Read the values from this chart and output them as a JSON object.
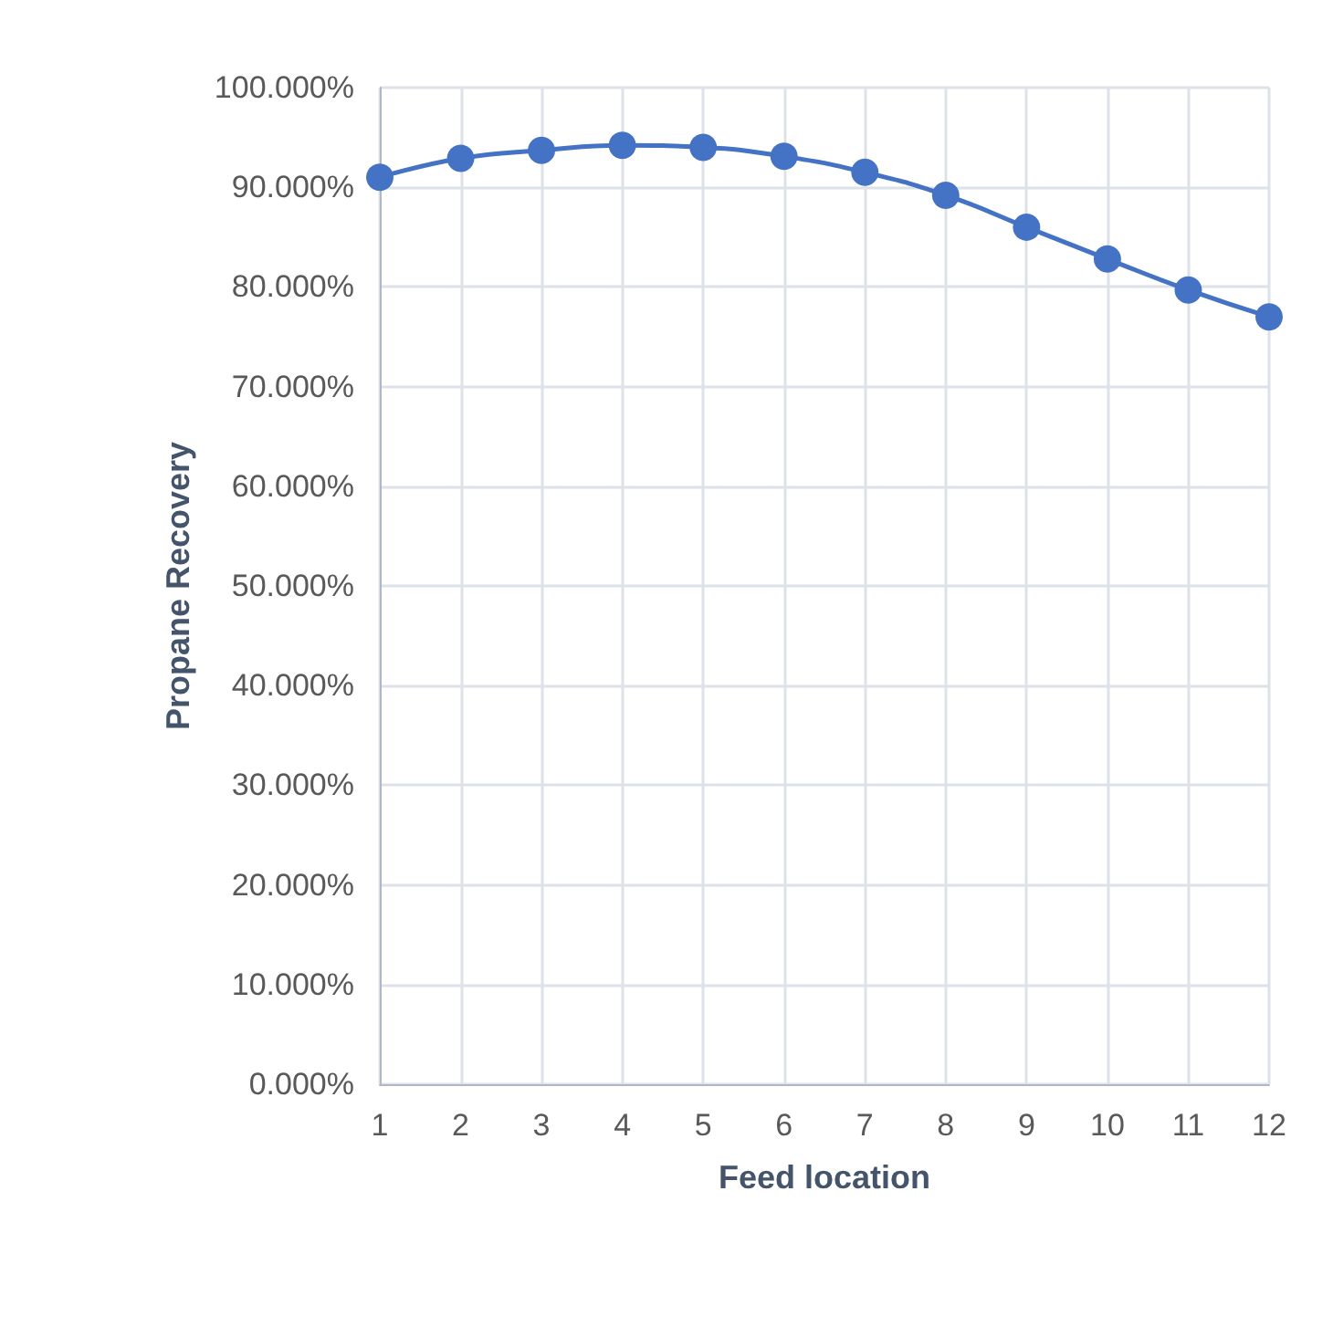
{
  "chart_data": {
    "type": "line",
    "xlabel": "Feed location",
    "ylabel": "Propane Recovery",
    "x": [
      1,
      2,
      3,
      4,
      5,
      6,
      7,
      8,
      9,
      10,
      11,
      12
    ],
    "series": [
      {
        "color": "#4472c4",
        "values": [
          91.0,
          92.9,
          93.7,
          94.2,
          94.0,
          93.1,
          91.5,
          89.2,
          86.0,
          82.8,
          79.7,
          77.0
        ]
      }
    ],
    "xlim": [
      1,
      12
    ],
    "xticks": [
      1,
      2,
      3,
      4,
      5,
      6,
      7,
      8,
      9,
      10,
      11,
      12
    ],
    "ylim": [
      0,
      100
    ],
    "yticks": [
      {
        "value": 0,
        "label": "0.000%"
      },
      {
        "value": 10,
        "label": "10.000%"
      },
      {
        "value": 20,
        "label": "20.000%"
      },
      {
        "value": 30,
        "label": "30.000%"
      },
      {
        "value": 40,
        "label": "40.000%"
      },
      {
        "value": 50,
        "label": "50.000%"
      },
      {
        "value": 60,
        "label": "60.000%"
      },
      {
        "value": 70,
        "label": "70.000%"
      },
      {
        "value": 80,
        "label": "80.000%"
      },
      {
        "value": 90,
        "label": "90.000%"
      },
      {
        "value": 100,
        "label": "100.000%"
      }
    ],
    "grid": true,
    "marker": "circle",
    "line_style": "solid"
  }
}
